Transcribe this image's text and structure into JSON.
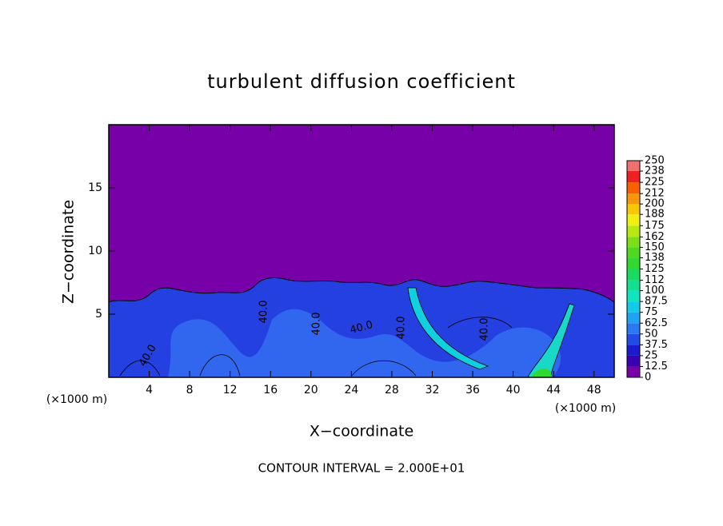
{
  "chart_data": {
    "type": "contour",
    "title": "turbulent diffusion coefficient",
    "xlabel": "X−coordinate",
    "ylabel": "Z−coordinate",
    "x_unit_labels": [
      "(×1000 m)",
      "(×1000 m)"
    ],
    "footer": "CONTOUR INTERVAL = 2.000E+01",
    "xlim": [
      0,
      50
    ],
    "ylim": [
      0,
      20
    ],
    "xticks": [
      4,
      8,
      12,
      16,
      20,
      24,
      28,
      32,
      36,
      40,
      44,
      48
    ],
    "yticks": [
      5,
      10,
      15
    ],
    "contour_labels": [
      "40.0",
      "40.0",
      "40.0",
      "40.0",
      "40.0",
      "40.0"
    ],
    "colorbar": {
      "levels": [
        0,
        12.5,
        25,
        37.5,
        50,
        62.5,
        75,
        87.5,
        100,
        112,
        125,
        138,
        150,
        162,
        175,
        188,
        200,
        212,
        225,
        238,
        250
      ],
      "colors": [
        "#7800a8",
        "#3c00b4",
        "#1a1ad0",
        "#1f4ce8",
        "#2a78f4",
        "#1ea4f4",
        "#10cce8",
        "#10e4c0",
        "#10e090",
        "#18dc60",
        "#30d830",
        "#50d820",
        "#7ce018",
        "#b8e810",
        "#f0f010",
        "#f8c808",
        "#f89808",
        "#f86000",
        "#f02020",
        "#f07070"
      ]
    }
  }
}
